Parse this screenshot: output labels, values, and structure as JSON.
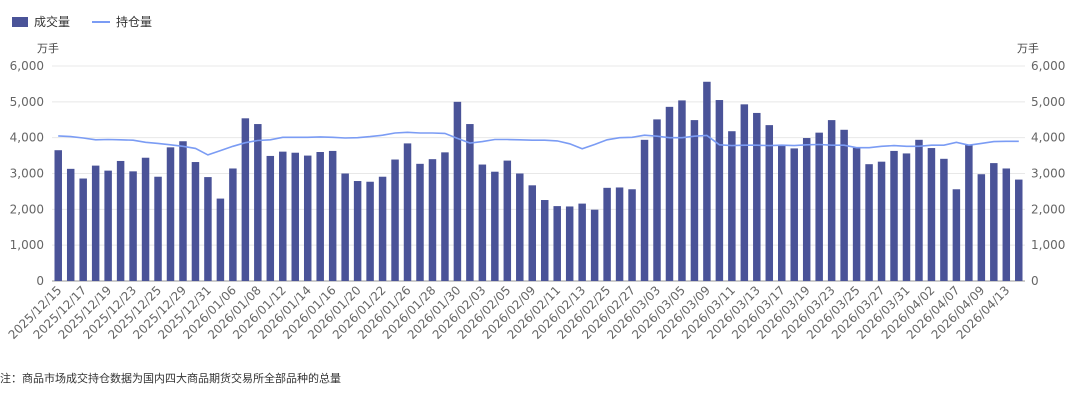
{
  "legend": {
    "bar_label": "成交量",
    "line_label": "持仓量"
  },
  "axes": {
    "left_unit": "万手",
    "right_unit": "万手"
  },
  "footnote": "注：商品市场成交持仓数据为国内四大商品期货交易所全部品种的总量",
  "colors": {
    "bar": "#4a5398",
    "line": "#7b9cf4",
    "axis_text": "#666666",
    "grid": "#e8e8e8"
  },
  "chart_data": {
    "type": "bar",
    "ylim": [
      0,
      6000
    ],
    "yticks": [
      0,
      1000,
      2000,
      3000,
      4000,
      5000,
      6000
    ],
    "ytick_labels": [
      "0",
      "1,000",
      "2,000",
      "3,000",
      "4,000",
      "5,000",
      "6,000"
    ],
    "x_tick_labels": [
      "2025/12/15",
      "2025/12/17",
      "2025/12/19",
      "2025/12/23",
      "2025/12/25",
      "2025/12/29",
      "2025/12/31",
      "2026/01/06",
      "2026/01/08",
      "2026/01/12",
      "2026/01/14",
      "2026/01/16",
      "2026/01/20",
      "2026/01/22",
      "2026/01/26",
      "2026/01/28",
      "2026/01/30",
      "2026/02/03",
      "2026/02/05",
      "2026/02/09",
      "2026/02/11",
      "2026/02/13",
      "2026/02/25",
      "2026/02/27",
      "2026/03/03",
      "2026/03/05",
      "2026/03/09",
      "2026/03/11",
      "2026/03/13",
      "2026/03/17",
      "2026/03/19",
      "2026/03/23",
      "2026/03/25",
      "2026/03/27",
      "2026/03/31",
      "2026/04/02",
      "2026/04/07",
      "2026/04/09",
      "2026/04/13"
    ],
    "series": [
      {
        "name": "成交量",
        "type": "bar",
        "values": [
          3650,
          3130,
          2860,
          3220,
          3080,
          3350,
          3060,
          3440,
          2910,
          3730,
          3900,
          3320,
          2900,
          2300,
          3140,
          4540,
          4380,
          3490,
          3610,
          3580,
          3500,
          3600,
          3630,
          3000,
          2790,
          2770,
          2910,
          3390,
          3840,
          3270,
          3400,
          3590,
          5000,
          4380,
          3250,
          3050,
          3360,
          3000,
          2670,
          2260,
          2090,
          2080,
          2160,
          1990,
          2600,
          2610,
          2560,
          3940,
          4510,
          4860,
          5040,
          4490,
          5560,
          5050,
          4180,
          4930,
          4690,
          4350,
          3770,
          3700,
          3990,
          4140,
          4490,
          4220,
          3720,
          3260,
          3330,
          3630,
          3560,
          3940,
          3710,
          3410,
          2560,
          3810,
          2980,
          3290,
          3140,
          2830
        ]
      },
      {
        "name": "持仓量",
        "type": "line",
        "values": [
          4050,
          4030,
          3990,
          3940,
          3950,
          3940,
          3930,
          3870,
          3840,
          3800,
          3760,
          3700,
          3520,
          3640,
          3760,
          3860,
          3920,
          3940,
          4010,
          4010,
          4010,
          4020,
          4010,
          3990,
          4000,
          4030,
          4070,
          4130,
          4150,
          4130,
          4130,
          4120,
          3980,
          3850,
          3890,
          3950,
          3950,
          3940,
          3930,
          3930,
          3910,
          3830,
          3690,
          3810,
          3940,
          4000,
          4010,
          4070,
          4040,
          4000,
          4000,
          4040,
          4060,
          3800,
          3780,
          3790,
          3790,
          3780,
          3790,
          3780,
          3800,
          3810,
          3790,
          3790,
          3720,
          3720,
          3760,
          3780,
          3760,
          3760,
          3790,
          3790,
          3870,
          3790,
          3840,
          3890,
          3900,
          3900
        ]
      }
    ]
  }
}
